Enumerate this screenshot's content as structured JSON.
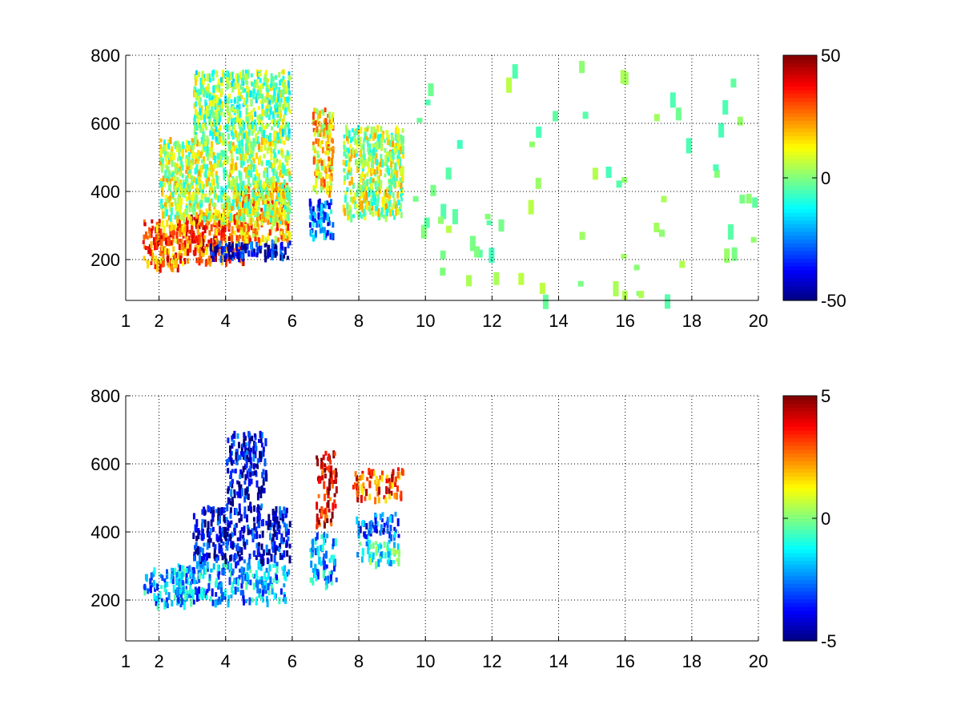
{
  "chart_data": [
    {
      "type": "heatmap",
      "title": "",
      "xlabel": "",
      "ylabel": "",
      "xlim": [
        1,
        20
      ],
      "ylim": [
        80,
        800
      ],
      "x_ticks": [
        1,
        2,
        4,
        6,
        8,
        10,
        12,
        14,
        16,
        18,
        20
      ],
      "x_tick_labels": [
        "1",
        "2",
        "4",
        "6",
        "8",
        "10",
        "12",
        "14",
        "16",
        "18",
        "20"
      ],
      "y_ticks": [
        200,
        400,
        600,
        800
      ],
      "y_tick_labels": [
        "200",
        "400",
        "600",
        "800"
      ],
      "grid": true,
      "colormap": "jet",
      "colorbar": {
        "min": -50,
        "max": 50,
        "ticks": [
          -50,
          0,
          50
        ],
        "tick_labels": [
          "-50",
          "0",
          "50"
        ]
      },
      "regions": [
        {
          "x": [
            1.5,
            2.8
          ],
          "y": [
            180,
            320
          ],
          "value": 25
        },
        {
          "x": [
            2.8,
            4.5
          ],
          "y": [
            200,
            340
          ],
          "value": 30
        },
        {
          "x": [
            3.5,
            5.9
          ],
          "y": [
            210,
            260
          ],
          "value": -40
        },
        {
          "x": [
            4.3,
            5.9
          ],
          "y": [
            260,
            430
          ],
          "value": 20
        },
        {
          "x": [
            2.0,
            5.9
          ],
          "y": [
            320,
            560
          ],
          "value": 5
        },
        {
          "x": [
            3.0,
            5.9
          ],
          "y": [
            560,
            760
          ],
          "value": 0
        },
        {
          "x": [
            6.5,
            7.2
          ],
          "y": [
            270,
            380
          ],
          "value": -25
        },
        {
          "x": [
            6.6,
            7.2
          ],
          "y": [
            400,
            650
          ],
          "value": 15
        },
        {
          "x": [
            7.5,
            9.3
          ],
          "y": [
            330,
            600
          ],
          "value": 5
        },
        {
          "x": [
            9.5,
            20
          ],
          "y": [
            80,
            800
          ],
          "value": 0
        }
      ]
    },
    {
      "type": "heatmap",
      "title": "",
      "xlabel": "",
      "ylabel": "",
      "xlim": [
        1,
        20
      ],
      "ylim": [
        80,
        800
      ],
      "x_ticks": [
        1,
        2,
        4,
        6,
        8,
        10,
        12,
        14,
        16,
        18,
        20
      ],
      "x_tick_labels": [
        "1",
        "2",
        "4",
        "6",
        "8",
        "10",
        "12",
        "14",
        "16",
        "18",
        "20"
      ],
      "y_ticks": [
        200,
        400,
        600,
        800
      ],
      "y_tick_labels": [
        "200",
        "400",
        "600",
        "800"
      ],
      "grid": true,
      "colormap": "jet",
      "colorbar": {
        "min": -5,
        "max": 5,
        "ticks": [
          -5,
          0,
          5
        ],
        "tick_labels": [
          "-5",
          "0",
          "5"
        ]
      },
      "regions": [
        {
          "x": [
            1.5,
            3.0
          ],
          "y": [
            190,
            300
          ],
          "value": -2
        },
        {
          "x": [
            2.5,
            5.9
          ],
          "y": [
            200,
            320
          ],
          "value": -2
        },
        {
          "x": [
            3.0,
            5.9
          ],
          "y": [
            320,
            480
          ],
          "value": -4
        },
        {
          "x": [
            4.0,
            5.2
          ],
          "y": [
            480,
            700
          ],
          "value": -4
        },
        {
          "x": [
            6.5,
            7.3
          ],
          "y": [
            250,
            400
          ],
          "value": -2
        },
        {
          "x": [
            6.7,
            7.3
          ],
          "y": [
            420,
            640
          ],
          "value": 4
        },
        {
          "x": [
            7.8,
            9.3
          ],
          "y": [
            500,
            590
          ],
          "value": 3
        },
        {
          "x": [
            7.9,
            9.2
          ],
          "y": [
            390,
            460
          ],
          "value": -3
        },
        {
          "x": [
            7.9,
            9.2
          ],
          "y": [
            310,
            380
          ],
          "value": -1
        }
      ]
    }
  ]
}
